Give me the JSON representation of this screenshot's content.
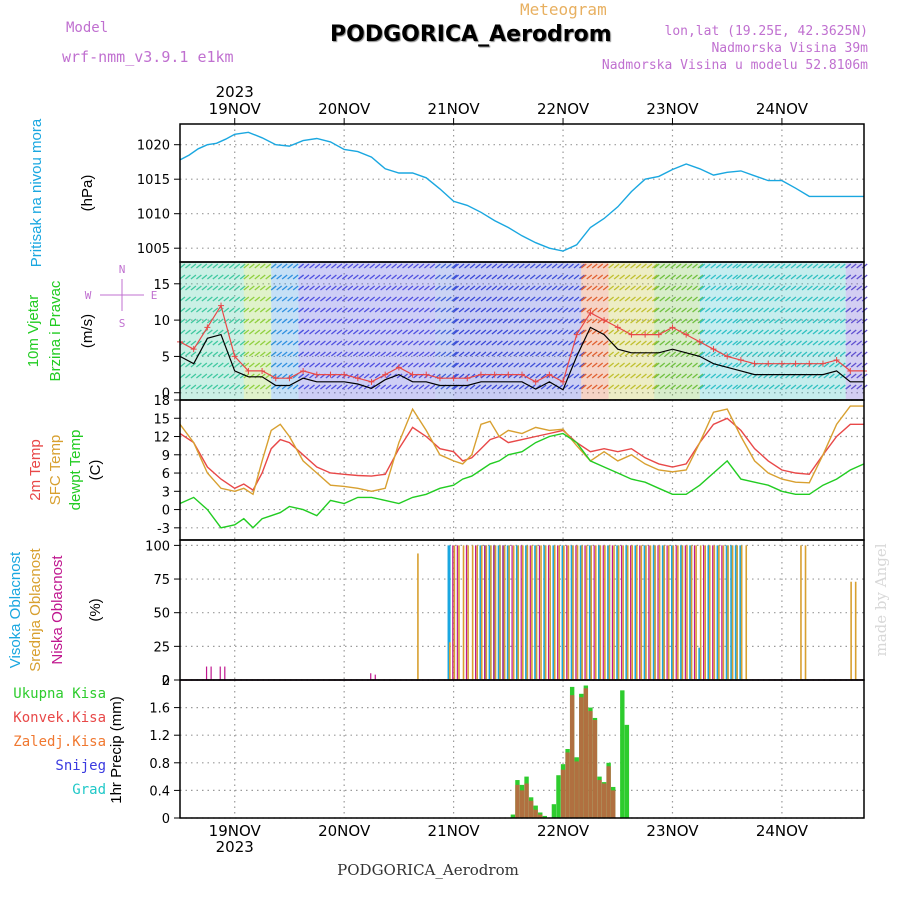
{
  "header": {
    "model_label": "Model",
    "model_name": "wrf-nmm_v3.9.1 e1km",
    "meteogram_label": "Meteogram",
    "station_title": "PODGORICA_Aerodrom",
    "lonlat": "lon,lat (19.25E, 42.3625N)",
    "altitude": "Nadmorska Visina 39m",
    "model_altitude": "Nadmorska Visina u modelu 52.8106m"
  },
  "footer": {
    "station": "PODGORICA_Aerodrom",
    "signature": "made by Angel"
  },
  "colors": {
    "pressure": "#1aa7e0",
    "t2m": "#e84848",
    "tsfc": "#d8a030",
    "dewpt": "#22cc22",
    "high_cloud": "#1aa7e0",
    "mid_cloud": "#d8a030",
    "low_cloud": "#c0178f",
    "total_precip": "#2ecc2e",
    "conv_precip": "#e84848",
    "frozen": "#f07830",
    "snow": "#3a3ae0",
    "graupel": "#20c8c8",
    "wind_speed": "#000000",
    "gust": "#e84848"
  },
  "chart_data": [
    {
      "type": "line",
      "panel": "pressure",
      "ylabel": [
        "Pritisak na nivou mora",
        "(hPa)"
      ],
      "ylim": [
        1003,
        1023
      ],
      "yticks": [
        1005,
        1010,
        1015,
        1020
      ],
      "x": [
        0,
        2,
        4,
        6,
        8,
        10,
        12,
        15,
        18,
        21,
        24,
        27,
        30,
        33,
        36,
        39,
        42,
        45,
        48,
        51,
        54,
        57,
        60,
        63,
        66,
        69,
        72,
        75,
        78,
        81,
        84,
        87,
        90,
        93,
        96,
        99,
        102,
        105,
        108,
        111,
        114,
        117,
        120,
        123,
        126,
        129,
        132,
        135,
        138,
        141,
        144,
        147,
        150
      ],
      "series": [
        {
          "name": "",
          "values": [
            1017.8,
            1018.5,
            1019.4,
            1020.0,
            1020.2,
            1020.8,
            1021.5,
            1021.8,
            1021.0,
            1020.0,
            1019.8,
            1020.6,
            1020.9,
            1020.4,
            1019.3,
            1019.0,
            1018.2,
            1016.5,
            1015.9,
            1015.9,
            1015.2,
            1013.6,
            1011.8,
            1011.2,
            1010.2,
            1009.0,
            1008.0,
            1006.8,
            1005.8,
            1005.0,
            1004.6,
            1005.5,
            1008.0,
            1009.3,
            1011.0,
            1013.2,
            1015.0,
            1015.4,
            1016.4,
            1017.2,
            1016.5,
            1015.6,
            1016.0,
            1016.2,
            1015.5,
            1014.8,
            1014.8,
            1013.7,
            1012.5,
            1012.5,
            1012.5,
            1012.5,
            1012.5
          ]
        }
      ]
    },
    {
      "type": "line",
      "panel": "wind",
      "ylabel": [
        "10m Vjetar",
        "Brzina i Pravac",
        "(m/s)"
      ],
      "compass": {
        "n": "N",
        "e": "E",
        "w": "W",
        "s": "S"
      },
      "ylim": [
        -1,
        18
      ],
      "yticks": [
        0,
        5,
        10,
        15
      ],
      "x": [
        0,
        3,
        6,
        9,
        12,
        15,
        18,
        21,
        24,
        27,
        30,
        33,
        36,
        39,
        42,
        45,
        48,
        51,
        54,
        57,
        60,
        63,
        66,
        69,
        72,
        75,
        78,
        81,
        84,
        87,
        90,
        93,
        96,
        99,
        102,
        105,
        108,
        111,
        114,
        117,
        120,
        123,
        126,
        129,
        132,
        135,
        138,
        141,
        144,
        147,
        150
      ],
      "series": [
        {
          "name": "",
          "values": [
            5,
            4,
            7.5,
            8,
            3,
            2.2,
            2.2,
            1,
            1,
            2,
            1.5,
            1.5,
            1.5,
            1.2,
            0.6,
            1.8,
            2.5,
            1.5,
            1.5,
            1,
            1,
            1,
            1.5,
            1.5,
            1.5,
            1.5,
            0.5,
            1.5,
            0.4,
            5,
            9,
            8,
            6,
            5.5,
            5.5,
            5.5,
            6,
            5.5,
            5,
            4,
            3.5,
            3,
            2.5,
            2.5,
            2.5,
            2.5,
            2.5,
            2.5,
            3,
            1.5,
            1.5
          ]
        },
        {
          "name": "",
          "values": [
            7,
            6,
            9,
            12,
            5,
            3,
            3,
            2,
            2,
            3,
            2.5,
            2.5,
            2.5,
            2,
            1.5,
            2.5,
            3.5,
            2.5,
            2.5,
            2,
            2,
            2,
            2.5,
            2.5,
            2.5,
            2.5,
            1.5,
            2.5,
            1.5,
            8,
            11,
            10,
            9,
            8,
            8,
            8,
            9,
            8,
            7,
            6,
            5,
            4.5,
            4,
            4,
            4,
            4,
            4,
            4,
            4.5,
            3,
            3
          ]
        }
      ]
    },
    {
      "type": "line",
      "panel": "temperature",
      "ylabel": [
        "2m Temp",
        "SFC Temp",
        "dewpt Temp",
        "(C)"
      ],
      "ylim": [
        -5,
        18
      ],
      "yticks": [
        -3,
        0,
        3,
        6,
        9,
        12,
        15,
        18
      ],
      "x": [
        0,
        3,
        6,
        9,
        12,
        14,
        16,
        18,
        20,
        22,
        24,
        27,
        30,
        33,
        36,
        39,
        42,
        45,
        48,
        51,
        54,
        57,
        60,
        62,
        64,
        66,
        68,
        70,
        72,
        75,
        78,
        81,
        84,
        87,
        90,
        93,
        96,
        99,
        102,
        105,
        108,
        111,
        114,
        117,
        120,
        123,
        126,
        129,
        132,
        135,
        138,
        141,
        144,
        147,
        150
      ],
      "series": [
        {
          "name": "",
          "values": [
            12.5,
            11,
            7,
            5,
            3.5,
            4.2,
            3.2,
            6,
            10,
            11.5,
            11,
            9,
            7,
            6,
            5.8,
            5.6,
            5.5,
            5.8,
            10,
            13.5,
            12,
            10,
            9.5,
            8,
            8.5,
            10,
            11.5,
            12,
            11,
            11.5,
            12,
            12.5,
            13,
            11,
            9.5,
            10,
            9.5,
            10,
            8.5,
            7.5,
            7,
            7.5,
            11,
            14,
            15,
            13,
            10,
            8,
            6.5,
            6,
            5.8,
            9,
            12,
            14,
            14
          ]
        },
        {
          "name": "",
          "values": [
            14,
            11,
            6,
            3.5,
            3,
            3.5,
            2.5,
            8,
            13,
            14,
            12,
            8,
            6,
            4,
            3.8,
            3.5,
            3,
            3.5,
            11,
            16.5,
            13,
            9,
            8,
            7.5,
            9,
            14,
            14.5,
            12,
            13,
            12.5,
            13.5,
            13,
            13.2,
            10.5,
            8,
            9.5,
            8,
            9,
            7.5,
            6.5,
            6.2,
            6.5,
            11,
            16,
            16.5,
            12,
            8,
            6,
            5,
            4.5,
            4.4,
            9,
            14,
            17,
            17
          ]
        },
        {
          "name": "",
          "values": [
            1,
            2,
            0,
            -3,
            -2.5,
            -1.5,
            -3,
            -1.5,
            -1,
            -0.5,
            0.5,
            0,
            -1,
            1.5,
            1,
            2,
            2,
            1.5,
            1,
            2,
            2.5,
            3.5,
            4,
            5,
            5.5,
            6.5,
            7.5,
            8,
            9,
            9.5,
            11,
            12,
            12.5,
            11,
            8,
            7,
            6,
            5,
            4.5,
            3.5,
            2.5,
            2.5,
            4,
            6,
            8,
            5,
            4.5,
            4,
            3,
            2.5,
            2.5,
            4,
            5,
            6.5,
            7.5
          ]
        }
      ]
    },
    {
      "type": "bar",
      "panel": "cloud",
      "ylabel": [
        "Visoka Oblacnost",
        "Srednja Oblacnost",
        "Niska Oblacnost",
        "(%)"
      ],
      "ylim": [
        0,
        104
      ],
      "yticks": [
        0,
        25,
        50,
        75,
        100
      ],
      "series": [
        {
          "name": "",
          "x": [
            59,
            66,
            67,
            68,
            69,
            70,
            71,
            72,
            74,
            76,
            78,
            80,
            82,
            84,
            86,
            88,
            90,
            92,
            94,
            96,
            98,
            100,
            102,
            104,
            106,
            108,
            110,
            112,
            114,
            116,
            118,
            120,
            121,
            122,
            123
          ],
          "values": [
            100,
            100,
            100,
            100,
            100,
            100,
            100,
            100,
            100,
            100,
            100,
            100,
            100,
            100,
            100,
            100,
            100,
            100,
            100,
            100,
            100,
            100,
            100,
            100,
            100,
            100,
            100,
            100,
            24,
            100,
            100,
            100,
            100,
            100,
            100
          ]
        },
        {
          "name": "",
          "x": [
            52,
            59,
            60,
            61,
            62,
            63,
            64,
            65,
            66,
            67,
            68,
            69,
            70,
            71,
            72,
            73,
            74,
            75,
            76,
            77,
            78,
            79,
            80,
            81,
            82,
            83,
            84,
            85,
            86,
            87,
            88,
            89,
            90,
            91,
            92,
            93,
            94,
            95,
            96,
            97,
            98,
            99,
            100,
            101,
            102,
            103,
            104,
            105,
            106,
            107,
            108,
            109,
            110,
            111,
            112,
            113,
            114,
            115,
            116,
            117,
            118,
            119,
            120,
            121,
            122,
            123,
            124,
            136,
            137,
            147,
            148
          ],
          "values": [
            94,
            28,
            100,
            100,
            100,
            100,
            100,
            100,
            100,
            100,
            100,
            100,
            100,
            100,
            100,
            100,
            100,
            100,
            100,
            100,
            100,
            100,
            100,
            100,
            100,
            100,
            100,
            100,
            100,
            100,
            100,
            100,
            100,
            100,
            100,
            100,
            100,
            100,
            100,
            100,
            100,
            100,
            100,
            100,
            100,
            100,
            100,
            100,
            100,
            100,
            100,
            100,
            100,
            100,
            100,
            100,
            100,
            100,
            100,
            100,
            100,
            100,
            100,
            100,
            100,
            100,
            100,
            100,
            100,
            73,
            73
          ]
        },
        {
          "name": "",
          "x": [
            6,
            7,
            9,
            10,
            42,
            43,
            60,
            61,
            63,
            65,
            67,
            69,
            71,
            73,
            75,
            77,
            79,
            81,
            83,
            85,
            87,
            89,
            91,
            93,
            95,
            97,
            99,
            101,
            103,
            105,
            107,
            109,
            111,
            113,
            115,
            117,
            119
          ],
          "values": [
            10,
            10,
            10,
            10,
            5,
            4,
            100,
            100,
            100,
            100,
            100,
            100,
            100,
            100,
            100,
            100,
            100,
            100,
            100,
            100,
            100,
            100,
            100,
            100,
            100,
            100,
            100,
            100,
            100,
            100,
            100,
            100,
            100,
            100,
            100,
            100,
            100
          ]
        }
      ]
    },
    {
      "type": "bar",
      "panel": "precipitation",
      "ylabel": [
        "1hr Precip",
        "(mm)"
      ],
      "legend": [
        "Ukupna Kisa",
        "Konvek.Kisa",
        "Zaledj.Kisa",
        "Snijeg",
        "Grad"
      ],
      "ylim": [
        0,
        2
      ],
      "yticks": [
        0,
        0.4,
        0.8,
        1.2,
        1.6,
        2
      ],
      "series": [
        {
          "name": "Ukupna Kisa",
          "x": [
            73,
            74,
            75,
            76,
            77,
            78,
            79,
            80,
            82,
            83,
            84,
            85,
            86,
            87,
            88,
            89,
            90,
            91,
            92,
            93,
            94,
            95,
            97,
            98
          ],
          "values": [
            0.05,
            0.55,
            0.48,
            0.6,
            0.3,
            0.18,
            0.08,
            0.03,
            0.2,
            0.62,
            0.78,
            1.0,
            1.9,
            0.88,
            1.8,
            1.92,
            1.6,
            1.45,
            0.6,
            0.52,
            0.8,
            0.45,
            1.85,
            1.35
          ]
        },
        {
          "name": "Konvek.Kisa",
          "x": [
            74,
            75,
            76,
            77,
            78,
            79,
            84,
            85,
            86,
            87,
            88,
            89,
            90,
            91,
            92,
            93,
            94,
            95
          ],
          "values": [
            0.48,
            0.4,
            0.5,
            0.25,
            0.12,
            0.05,
            0.7,
            0.95,
            1.78,
            0.82,
            1.75,
            1.88,
            1.55,
            1.42,
            0.55,
            0.5,
            0.75,
            0.4
          ]
        }
      ]
    }
  ],
  "time_axis": {
    "year": "2023",
    "days": [
      {
        "label": "19NOV",
        "hour": 12
      },
      {
        "label": "20NOV",
        "hour": 36
      },
      {
        "label": "21NOV",
        "hour": 60
      },
      {
        "label": "22NOV",
        "hour": 84
      },
      {
        "label": "23NOV",
        "hour": 108
      },
      {
        "label": "24NOV",
        "hour": 132
      }
    ],
    "xlim": [
      0,
      150
    ]
  }
}
